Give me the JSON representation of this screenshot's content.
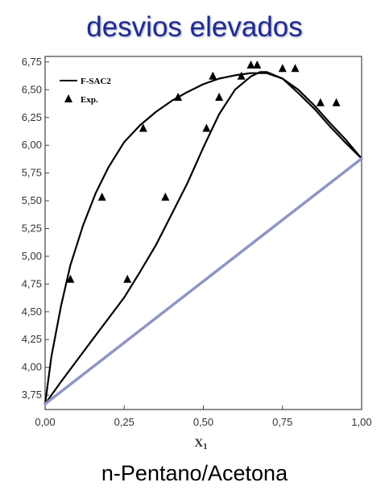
{
  "title": "desvios elevados",
  "caption": "n-Pentano/Acetona",
  "colors": {
    "title": "#1f2a8f",
    "ideal_line": "#8f96c4",
    "curve": "#000000"
  },
  "chart_data": {
    "type": "line",
    "xlabel": "X",
    "xlabel_sub": "1",
    "ylabel": "",
    "xlim": [
      0,
      1
    ],
    "ylim": [
      3.62,
      6.8
    ],
    "xticks": [
      "0,00",
      "0,25",
      "0,50",
      "0,75",
      "1,00"
    ],
    "xtick_values": [
      0,
      0.25,
      0.5,
      0.75,
      1.0
    ],
    "yticks": [
      "3,75",
      "4,00",
      "4,25",
      "4,50",
      "4,75",
      "5,00",
      "5,25",
      "5,50",
      "5,75",
      "6,00",
      "6,25",
      "6,50",
      "6,75"
    ],
    "ytick_values": [
      3.75,
      4.0,
      4.25,
      4.5,
      4.75,
      5.0,
      5.25,
      5.5,
      5.75,
      6.0,
      6.25,
      6.5,
      6.75
    ],
    "grid": false,
    "legend": {
      "position": "top-left",
      "entries": [
        "F-SAC2",
        "Exp."
      ]
    },
    "series": [
      {
        "name": "F-SAC2",
        "kind": "line",
        "x": [
          0.0,
          0.02,
          0.05,
          0.08,
          0.12,
          0.16,
          0.2,
          0.25,
          0.3,
          0.35,
          0.4,
          0.45,
          0.5,
          0.55,
          0.6,
          0.65,
          0.7,
          0.75,
          0.8,
          0.85,
          0.9,
          0.95,
          1.0
        ],
        "y": [
          3.67,
          4.1,
          4.55,
          4.92,
          5.28,
          5.57,
          5.8,
          6.03,
          6.18,
          6.3,
          6.4,
          6.48,
          6.55,
          6.6,
          6.63,
          6.65,
          6.65,
          6.6,
          6.5,
          6.36,
          6.2,
          6.05,
          5.88
        ]
      },
      {
        "name": "F-SAC2",
        "kind": "line",
        "x": [
          0.0,
          0.05,
          0.1,
          0.15,
          0.2,
          0.25,
          0.3,
          0.35,
          0.4,
          0.45,
          0.5,
          0.55,
          0.6,
          0.65,
          0.68,
          0.7,
          0.75,
          0.8,
          0.85,
          0.9,
          0.95,
          1.0
        ],
        "y": [
          3.67,
          3.87,
          4.06,
          4.25,
          4.44,
          4.63,
          4.86,
          5.1,
          5.38,
          5.66,
          5.98,
          6.28,
          6.5,
          6.62,
          6.66,
          6.66,
          6.6,
          6.47,
          6.33,
          6.17,
          6.02,
          5.88
        ]
      },
      {
        "name": "Exp.",
        "kind": "scatter",
        "x": [
          0.08,
          0.18,
          0.26,
          0.31,
          0.38,
          0.42,
          0.51,
          0.53,
          0.55,
          0.62,
          0.65,
          0.67,
          0.75,
          0.79,
          0.87,
          0.92
        ],
        "y": [
          4.79,
          5.53,
          4.79,
          6.15,
          5.53,
          6.43,
          6.15,
          6.62,
          6.43,
          6.62,
          6.72,
          6.72,
          6.69,
          6.69,
          6.38,
          6.38
        ]
      },
      {
        "name": "",
        "kind": "line",
        "x": [
          0.0,
          1.0
        ],
        "y": [
          3.67,
          5.88
        ]
      }
    ]
  }
}
